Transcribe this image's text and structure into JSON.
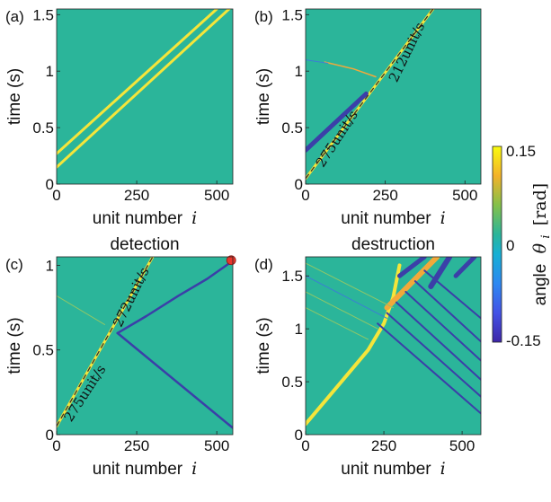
{
  "colors": {
    "background": "#2bb59a",
    "positive": "#f5e53a",
    "positive_mid": "#f2a93a",
    "negative": "#3b3fa8",
    "negative_light": "#3b7fd4",
    "marker": "#e8372d"
  },
  "colorbar": {
    "label_prefix": "angle",
    "label_symbol": "θ",
    "label_sub": "i",
    "label_unit": "[rad]",
    "ticks": [
      "0.15",
      "0",
      "-0.15"
    ],
    "range": [
      -0.15,
      0.15
    ],
    "colormap": "parula"
  },
  "chart_data": [
    {
      "panel": "(a)",
      "title": "",
      "type": "heatmap",
      "xlabel": "unit number",
      "xlabel_symbol": "i",
      "ylabel": "time (s)",
      "xlim": [
        0,
        550
      ],
      "ylim": [
        0,
        1.55
      ],
      "xticks": [
        "0",
        "250",
        "500"
      ],
      "xtick_values": [
        0,
        250,
        500
      ],
      "yticks": [
        "0",
        "0.5",
        "1",
        "1.5"
      ],
      "ytick_values": [
        0,
        0.5,
        1,
        1.5
      ],
      "traces": [
        {
          "points": [
            [
              0,
              0.27
            ],
            [
              500,
              1.55
            ]
          ],
          "value": 0.15,
          "width": 3
        },
        {
          "points": [
            [
              0,
              0.15
            ],
            [
              550,
              1.58
            ]
          ],
          "value": 0.15,
          "width": 3
        }
      ],
      "velocity_labels": []
    },
    {
      "panel": "(b)",
      "title": "",
      "type": "heatmap",
      "xlabel": "unit number",
      "xlabel_symbol": "i",
      "ylabel": "time (s)",
      "xlim": [
        0,
        550
      ],
      "ylim": [
        0,
        1.55
      ],
      "xticks": [
        "0",
        "250",
        "500"
      ],
      "xtick_values": [
        0,
        250,
        500
      ],
      "yticks": [
        "0",
        "0.5",
        "1",
        "1.5"
      ],
      "ytick_values": [
        0,
        0.5,
        1,
        1.5
      ],
      "traces": [
        {
          "points": [
            [
              0,
              0.05
            ],
            [
              400,
              1.55
            ]
          ],
          "value": 0.15,
          "width": 3
        },
        {
          "points": [
            [
              0,
              0.3
            ],
            [
              190,
              0.8
            ]
          ],
          "value": -0.15,
          "width": 5
        },
        {
          "points": [
            [
              60,
              1.08
            ],
            [
              150,
              1.02
            ],
            [
              220,
              0.95
            ]
          ],
          "value": 0.08,
          "width": 1.5
        },
        {
          "points": [
            [
              0,
              1.1
            ],
            [
              70,
              1.07
            ]
          ],
          "value": -0.05,
          "width": 1
        }
      ],
      "velocity_labels": [
        {
          "text": "212unit/s",
          "at": [
            330,
            1.15
          ],
          "angle": -64
        },
        {
          "text": "275unit/s",
          "at": [
            110,
            0.38
          ],
          "angle": -57
        }
      ]
    },
    {
      "panel": "(c)",
      "title": "detection",
      "type": "heatmap",
      "xlabel": "unit number",
      "xlabel_symbol": "i",
      "ylabel": "time (s)",
      "xlim": [
        0,
        550
      ],
      "ylim": [
        0,
        1.05
      ],
      "xticks": [
        "0",
        "250",
        "500"
      ],
      "xtick_values": [
        0,
        250,
        500
      ],
      "yticks": [
        "0",
        "0.5",
        "1"
      ],
      "ytick_values": [
        0,
        0.5,
        1
      ],
      "traces": [
        {
          "points": [
            [
              0,
              0.05
            ],
            [
              300,
              1.05
            ]
          ],
          "value": 0.15,
          "width": 3
        },
        {
          "points": [
            [
              190,
              0.6
            ],
            [
              550,
              0.04
            ]
          ],
          "value": -0.15,
          "width": 2.5
        },
        {
          "points": [
            [
              190,
              0.6
            ],
            [
              280,
              0.7
            ],
            [
              380,
              0.82
            ],
            [
              470,
              0.92
            ],
            [
              545,
              1.02
            ]
          ],
          "value": -0.15,
          "width": 2.5
        },
        {
          "points": [
            [
              0,
              0.82
            ],
            [
              150,
              0.65
            ]
          ],
          "value": 0.05,
          "width": 1
        }
      ],
      "velocity_labels": [
        {
          "text": "272unit/s",
          "at": [
            245,
            0.8
          ],
          "angle": -64
        },
        {
          "text": "275unit/s",
          "at": [
            100,
            0.23
          ],
          "angle": -57
        }
      ],
      "marker": {
        "at": [
          545,
          1.03
        ]
      }
    },
    {
      "panel": "(d)",
      "title": "destruction",
      "type": "heatmap",
      "xlabel": "unit number",
      "xlabel_symbol": "i",
      "ylabel": "time (s)",
      "xlim": [
        0,
        560
      ],
      "ylim": [
        0,
        1.68
      ],
      "xticks": [
        "0",
        "250",
        "500"
      ],
      "xtick_values": [
        0,
        250,
        500
      ],
      "yticks": [
        "0",
        "0.5",
        "1",
        "1.5"
      ],
      "ytick_values": [
        0,
        0.5,
        1,
        1.5
      ],
      "traces": [
        {
          "points": [
            [
              0,
              0.1
            ],
            [
              200,
              0.8
            ],
            [
              250,
              1.05
            ],
            [
              280,
              1.3
            ],
            [
              300,
              1.6
            ]
          ],
          "value": 0.15,
          "width": 4
        },
        {
          "points": [
            [
              260,
              1.2
            ],
            [
              420,
              1.68
            ]
          ],
          "value": 0.1,
          "width": 6
        },
        {
          "points": [
            [
              230,
              1.05
            ],
            [
              560,
              0.2
            ]
          ],
          "value": -0.15,
          "width": 2
        },
        {
          "points": [
            [
              260,
              1.15
            ],
            [
              560,
              0.36
            ]
          ],
          "value": -0.15,
          "width": 2
        },
        {
          "points": [
            [
              290,
              1.25
            ],
            [
              560,
              0.52
            ]
          ],
          "value": -0.15,
          "width": 2
        },
        {
          "points": [
            [
              320,
              1.35
            ],
            [
              560,
              0.7
            ]
          ],
          "value": -0.15,
          "width": 2
        },
        {
          "points": [
            [
              350,
              1.45
            ],
            [
              560,
              0.88
            ]
          ],
          "value": -0.15,
          "width": 2
        },
        {
          "points": [
            [
              380,
              1.55
            ],
            [
              560,
              1.1
            ]
          ],
          "value": -0.15,
          "width": 2
        },
        {
          "points": [
            [
              300,
              1.5
            ],
            [
              380,
              1.68
            ]
          ],
          "value": -0.12,
          "width": 5
        },
        {
          "points": [
            [
              400,
              1.4
            ],
            [
              460,
              1.68
            ]
          ],
          "value": -0.15,
          "width": 6
        },
        {
          "points": [
            [
              480,
              1.5
            ],
            [
              540,
              1.68
            ]
          ],
          "value": -0.12,
          "width": 5
        },
        {
          "points": [
            [
              0,
              1.2
            ],
            [
              200,
              0.9
            ]
          ],
          "value": 0.05,
          "width": 1
        },
        {
          "points": [
            [
              0,
              1.35
            ],
            [
              230,
              1.0
            ]
          ],
          "value": 0.05,
          "width": 1
        },
        {
          "points": [
            [
              0,
              1.5
            ],
            [
              260,
              1.1
            ]
          ],
          "value": -0.04,
          "width": 1
        },
        {
          "points": [
            [
              0,
              1.62
            ],
            [
              280,
              1.2
            ]
          ],
          "value": 0.04,
          "width": 1
        }
      ],
      "velocity_labels": []
    }
  ]
}
